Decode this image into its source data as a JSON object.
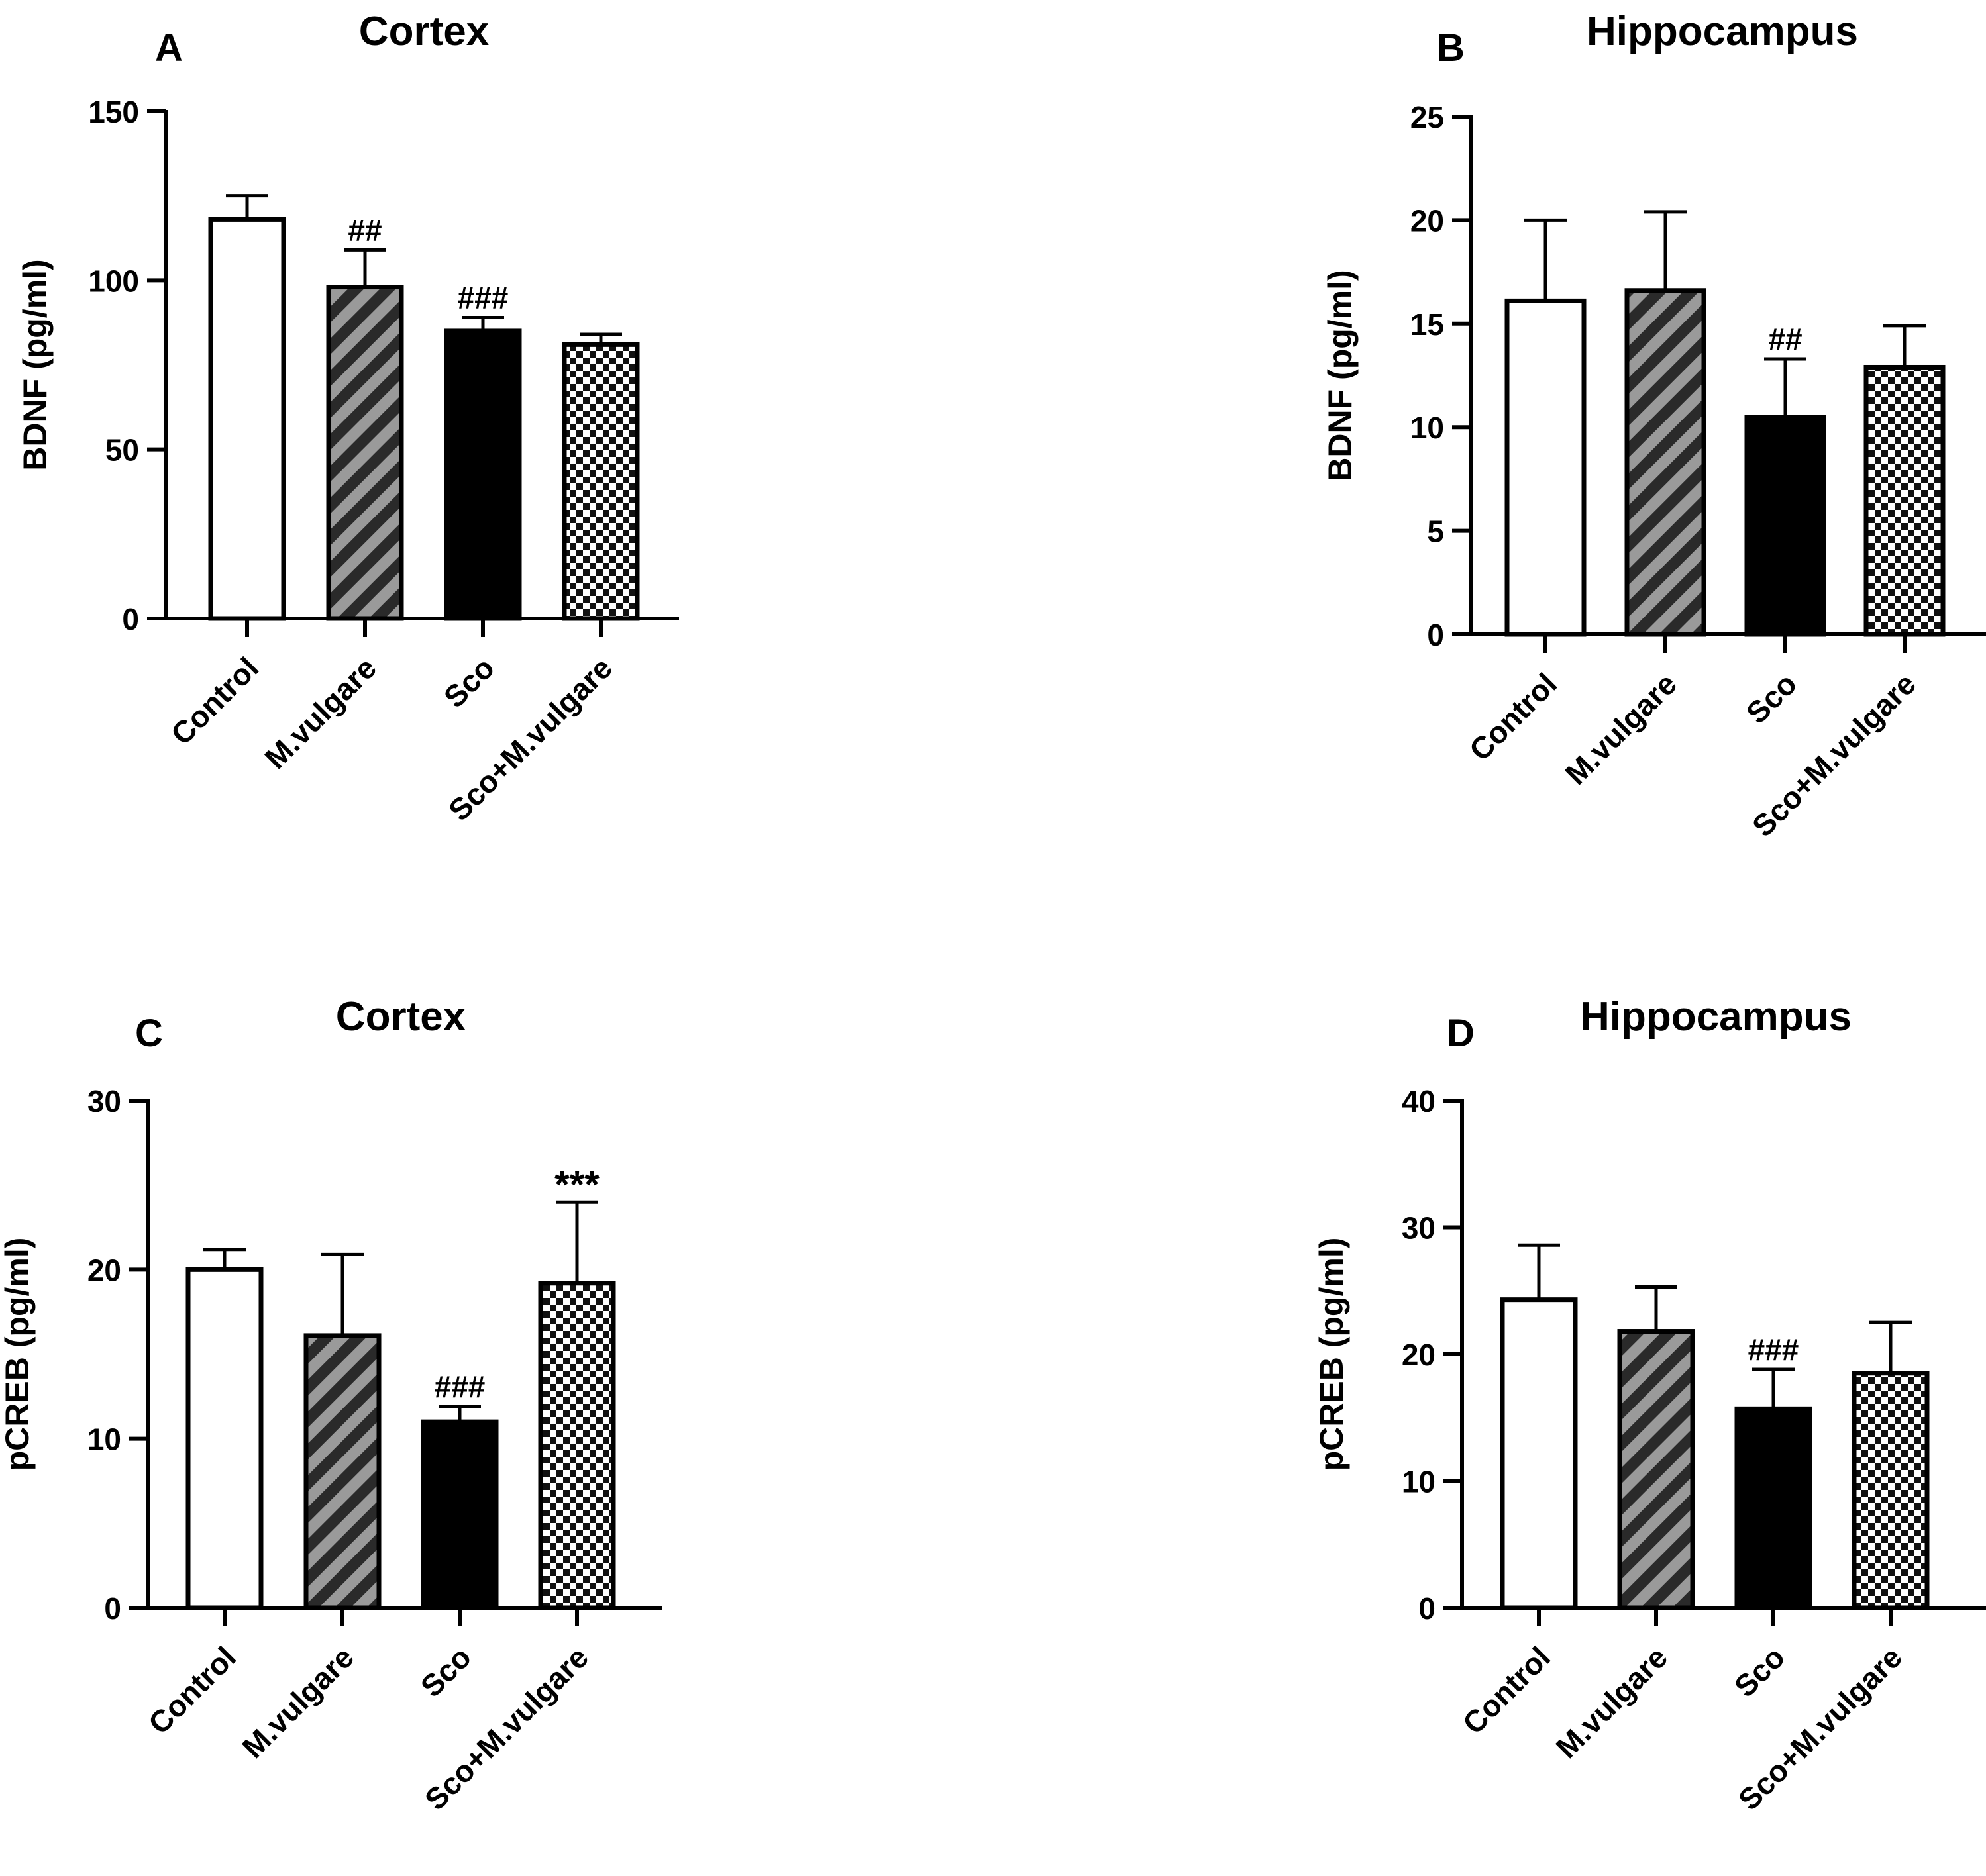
{
  "figure": {
    "panels": [
      {
        "letter": "A",
        "title": "Cortex"
      },
      {
        "letter": "B",
        "title": "Hippocampus"
      },
      {
        "letter": "C",
        "title": "Cortex"
      },
      {
        "letter": "D",
        "title": "Hippocampus"
      }
    ]
  },
  "chart_data": [
    {
      "panel": "A",
      "type": "bar",
      "title": "Cortex",
      "xlabel": "",
      "ylabel": "BDNF (pg/ml)",
      "ylim": [
        0,
        150
      ],
      "yticks": [
        0,
        50,
        100,
        150
      ],
      "categories": [
        "Control",
        "M.vulgare",
        "Sco",
        "Sco+M.vulgare"
      ],
      "values": [
        118,
        98,
        85,
        81
      ],
      "errors": [
        7,
        11,
        4,
        3
      ],
      "annotations": [
        "",
        "##",
        "###",
        ""
      ],
      "patterns": [
        "white",
        "stripe",
        "black",
        "check"
      ]
    },
    {
      "panel": "B",
      "type": "bar",
      "title": "Hippocampus",
      "xlabel": "",
      "ylabel": "BDNF (pg/ml)",
      "ylim": [
        0,
        25
      ],
      "yticks": [
        0,
        5,
        10,
        15,
        20,
        25
      ],
      "categories": [
        "Control",
        "M.vulgare",
        "Sco",
        "Sco+M.vulgare"
      ],
      "values": [
        16.1,
        16.6,
        10.5,
        12.9
      ],
      "errors": [
        3.9,
        3.8,
        2.8,
        2.0
      ],
      "annotations": [
        "",
        "",
        "##",
        ""
      ],
      "patterns": [
        "white",
        "stripe",
        "black",
        "check"
      ]
    },
    {
      "panel": "C",
      "type": "bar",
      "title": "Cortex",
      "xlabel": "",
      "ylabel": "pCREB (pg/ml)",
      "ylim": [
        0,
        30
      ],
      "yticks": [
        0,
        10,
        20,
        30
      ],
      "categories": [
        "Control",
        "M.vulgare",
        "Sco",
        "Sco+M.vulgare"
      ],
      "values": [
        20.0,
        16.1,
        11.0,
        19.2
      ],
      "errors": [
        1.2,
        4.8,
        0.9,
        4.8
      ],
      "annotations": [
        "",
        "",
        "###",
        "***"
      ],
      "patterns": [
        "white",
        "stripe",
        "black",
        "check"
      ]
    },
    {
      "panel": "D",
      "type": "bar",
      "title": "Hippocampus",
      "xlabel": "",
      "ylabel": "pCREB (pg/ml)",
      "ylim": [
        0,
        40
      ],
      "yticks": [
        0,
        10,
        20,
        30,
        40
      ],
      "categories": [
        "Control",
        "M.vulgare",
        "Sco",
        "Sco+M.vulgare"
      ],
      "values": [
        24.3,
        21.8,
        15.7,
        18.5
      ],
      "errors": [
        4.3,
        3.5,
        3.1,
        4.0
      ],
      "annotations": [
        "",
        "",
        "###",
        ""
      ],
      "patterns": [
        "white",
        "stripe",
        "black",
        "check"
      ]
    }
  ]
}
